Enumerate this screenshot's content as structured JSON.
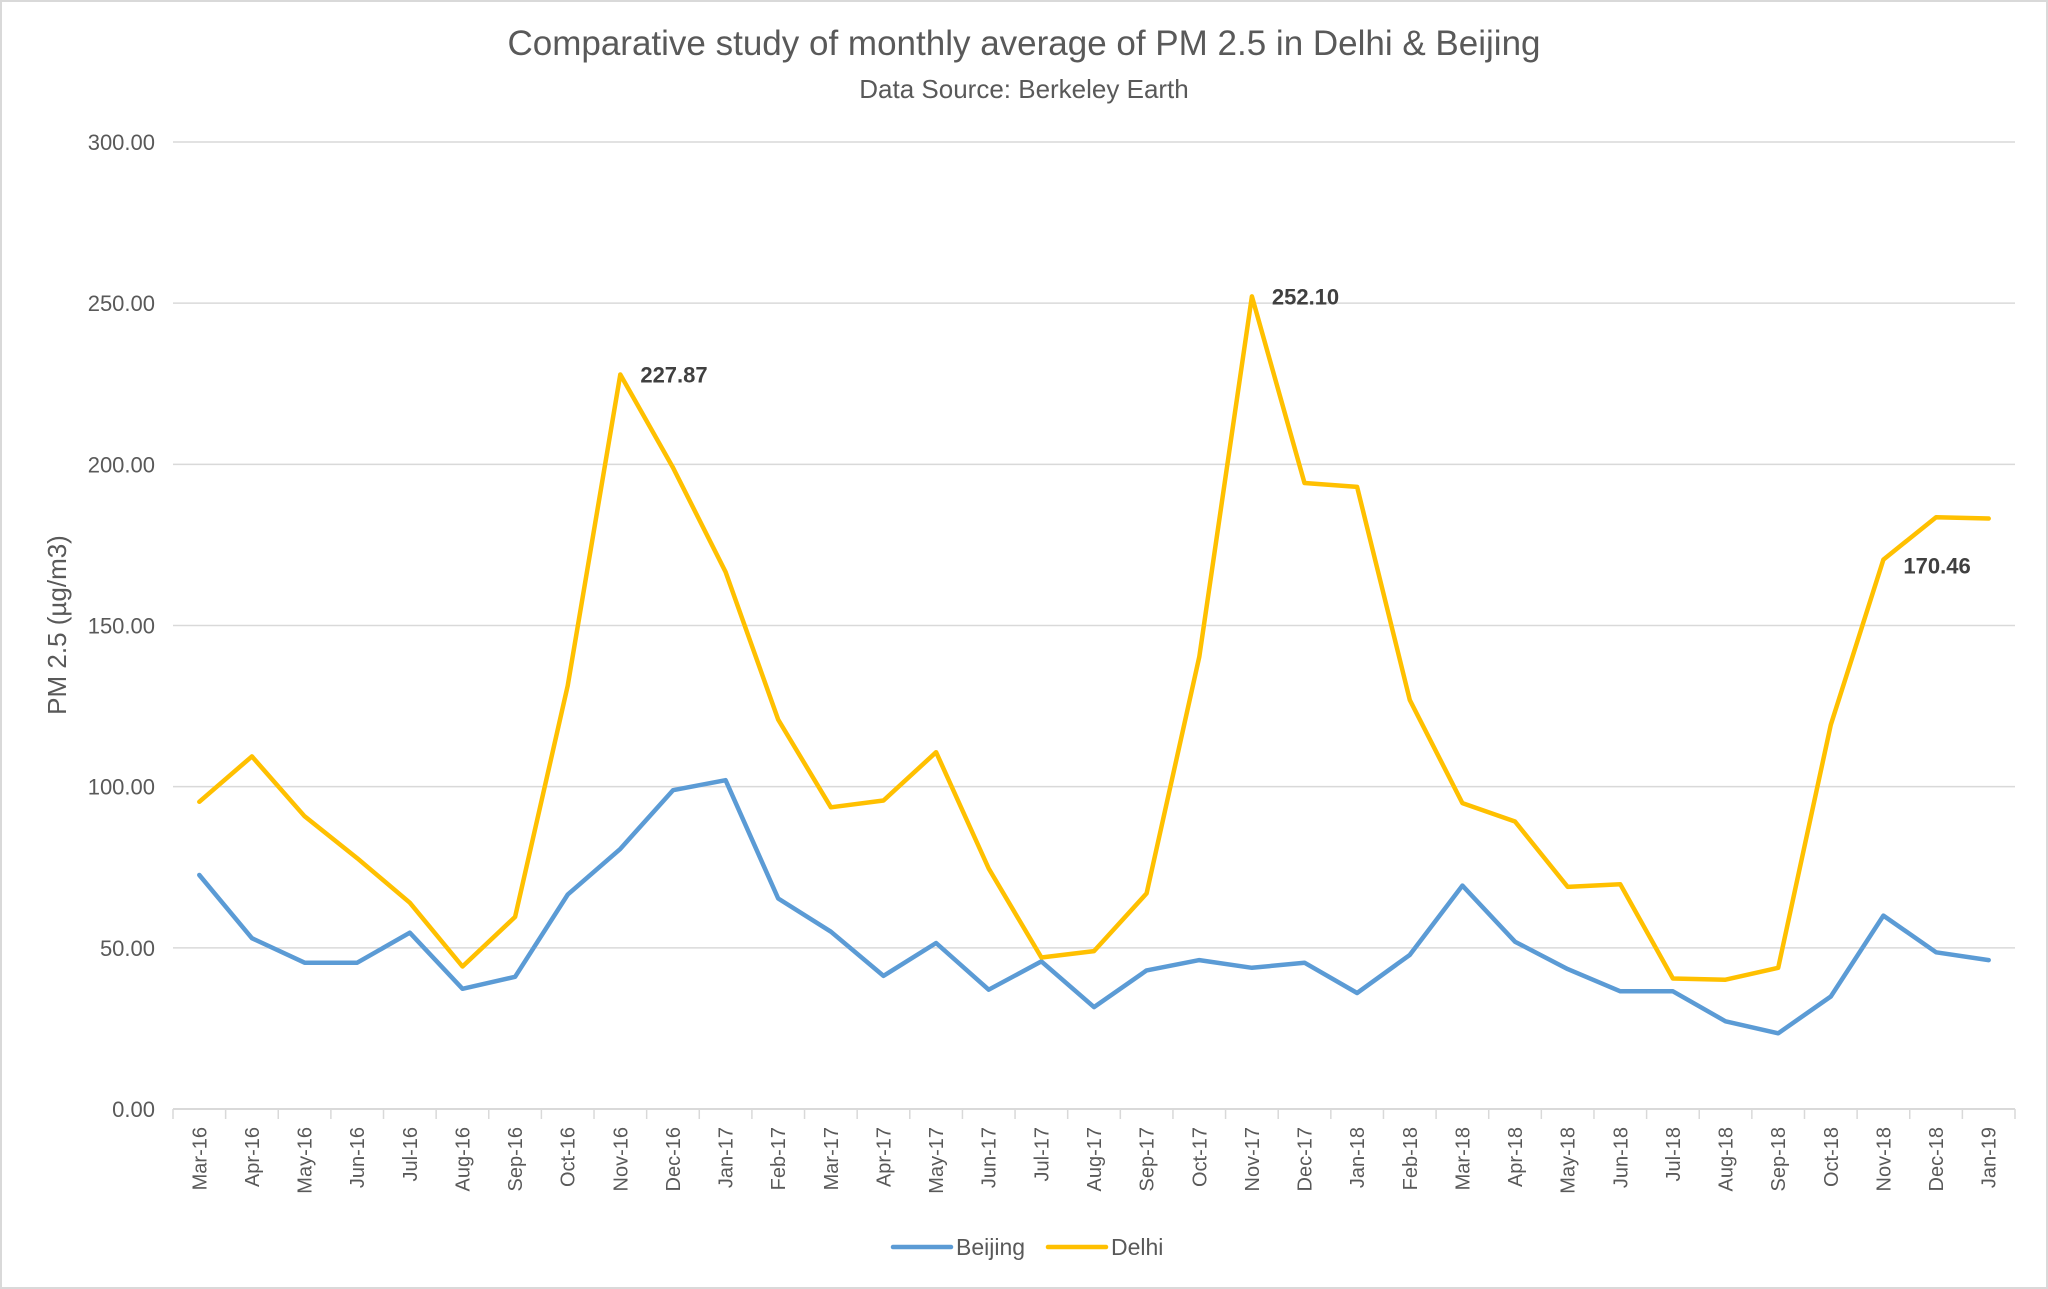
{
  "chart_data": {
    "type": "line",
    "title": "Comparative study of monthly average of PM 2.5 in Delhi & Beijing",
    "subtitle": "Data Source: Berkeley Earth",
    "xlabel": "",
    "ylabel": "PM 2.5 (µg/m3)",
    "ylim": [
      0,
      300
    ],
    "yticks": [
      "0.00",
      "50.00",
      "100.00",
      "150.00",
      "200.00",
      "250.00",
      "300.00"
    ],
    "grid": true,
    "legend_position": "bottom",
    "categories": [
      "Mar-16",
      "Apr-16",
      "May-16",
      "Jun-16",
      "Jul-16",
      "Aug-16",
      "Sep-16",
      "Oct-16",
      "Nov-16",
      "Dec-16",
      "Jan-17",
      "Feb-17",
      "Mar-17",
      "Apr-17",
      "May-17",
      "Jun-17",
      "Jul-17",
      "Aug-17",
      "Sep-17",
      "Oct-17",
      "Nov-17",
      "Dec-17",
      "Jan-18",
      "Feb-18",
      "Mar-18",
      "Apr-18",
      "May-18",
      "Jun-18",
      "Jul-18",
      "Aug-18",
      "Sep-18",
      "Oct-18",
      "Nov-18",
      "Dec-18",
      "Jan-19"
    ],
    "series": [
      {
        "name": "Beijing",
        "color": "#5b9bd5",
        "values": [
          72.6,
          53.0,
          45.4,
          45.4,
          54.7,
          37.3,
          41.0,
          66.5,
          80.7,
          98.9,
          102.0,
          65.3,
          55.0,
          41.3,
          51.5,
          37.0,
          45.8,
          31.6,
          43.0,
          46.2,
          43.8,
          45.4,
          36.0,
          47.8,
          69.3,
          51.9,
          43.4,
          36.5,
          36.5,
          27.2,
          23.5,
          34.9,
          60.0,
          48.6,
          46.2
        ]
      },
      {
        "name": "Delhi",
        "color": "#ffc000",
        "values": [
          95.3,
          109.4,
          90.8,
          77.8,
          64.0,
          44.2,
          59.6,
          131.3,
          227.87,
          199.0,
          166.6,
          120.8,
          93.6,
          95.7,
          110.7,
          74.6,
          47.0,
          49.0,
          66.9,
          140.3,
          252.1,
          194.2,
          193.0,
          126.9,
          94.9,
          89.2,
          68.9,
          69.7,
          40.5,
          40.1,
          43.8,
          119.2,
          170.46,
          183.6,
          183.2
        ]
      }
    ],
    "annotations": [
      {
        "series": "Delhi",
        "category": "Nov-16",
        "text": "227.87"
      },
      {
        "series": "Delhi",
        "category": "Nov-17",
        "text": "252.10"
      },
      {
        "series": "Delhi",
        "category": "Nov-18",
        "text": "170.46"
      }
    ]
  }
}
